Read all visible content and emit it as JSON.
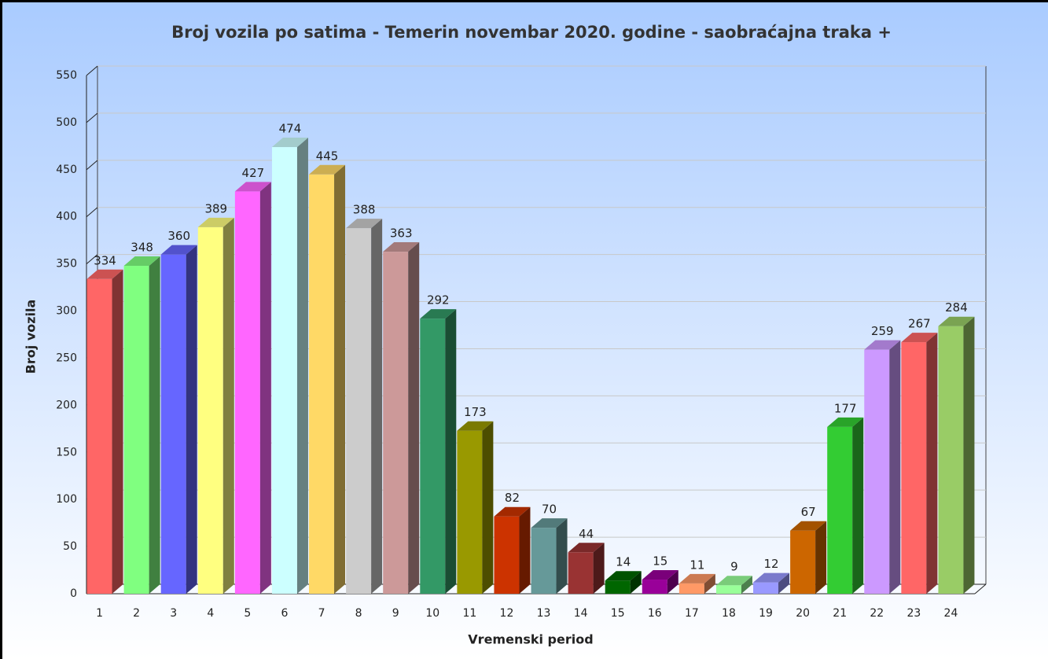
{
  "chart_data": {
    "type": "bar3d",
    "title": "Broj vozila po satima - Temerin novembar 2020. godine - saobraćajna traka +",
    "y_label": "Broj vozila",
    "x_label": "Vremenski period",
    "categories": [
      "1",
      "2",
      "3",
      "4",
      "5",
      "6",
      "7",
      "8",
      "9",
      "10",
      "11",
      "12",
      "13",
      "14",
      "15",
      "16",
      "17",
      "18",
      "19",
      "20",
      "21",
      "22",
      "23",
      "24"
    ],
    "values": [
      334,
      348,
      360,
      389,
      427,
      474,
      445,
      388,
      363,
      292,
      173,
      82,
      70,
      44,
      14,
      15,
      11,
      9,
      12,
      67,
      177,
      259,
      267,
      284
    ],
    "colors": [
      "#ff6666",
      "#80ff80",
      "#6666ff",
      "#ffff80",
      "#ff66ff",
      "#ccffff",
      "#ffd966",
      "#cccccc",
      "#cc9999",
      "#339966",
      "#999900",
      "#cc3300",
      "#669999",
      "#993333",
      "#006600",
      "#990099",
      "#ff9966",
      "#99ff99",
      "#9999ff",
      "#cc6600",
      "#33cc33",
      "#cc99ff",
      "#ff6666",
      "#99cc66"
    ],
    "ylim": [
      0,
      550
    ],
    "yticks": [
      0,
      50,
      100,
      150,
      200,
      250,
      300,
      350,
      400,
      450,
      500,
      550
    ],
    "grid": true
  }
}
